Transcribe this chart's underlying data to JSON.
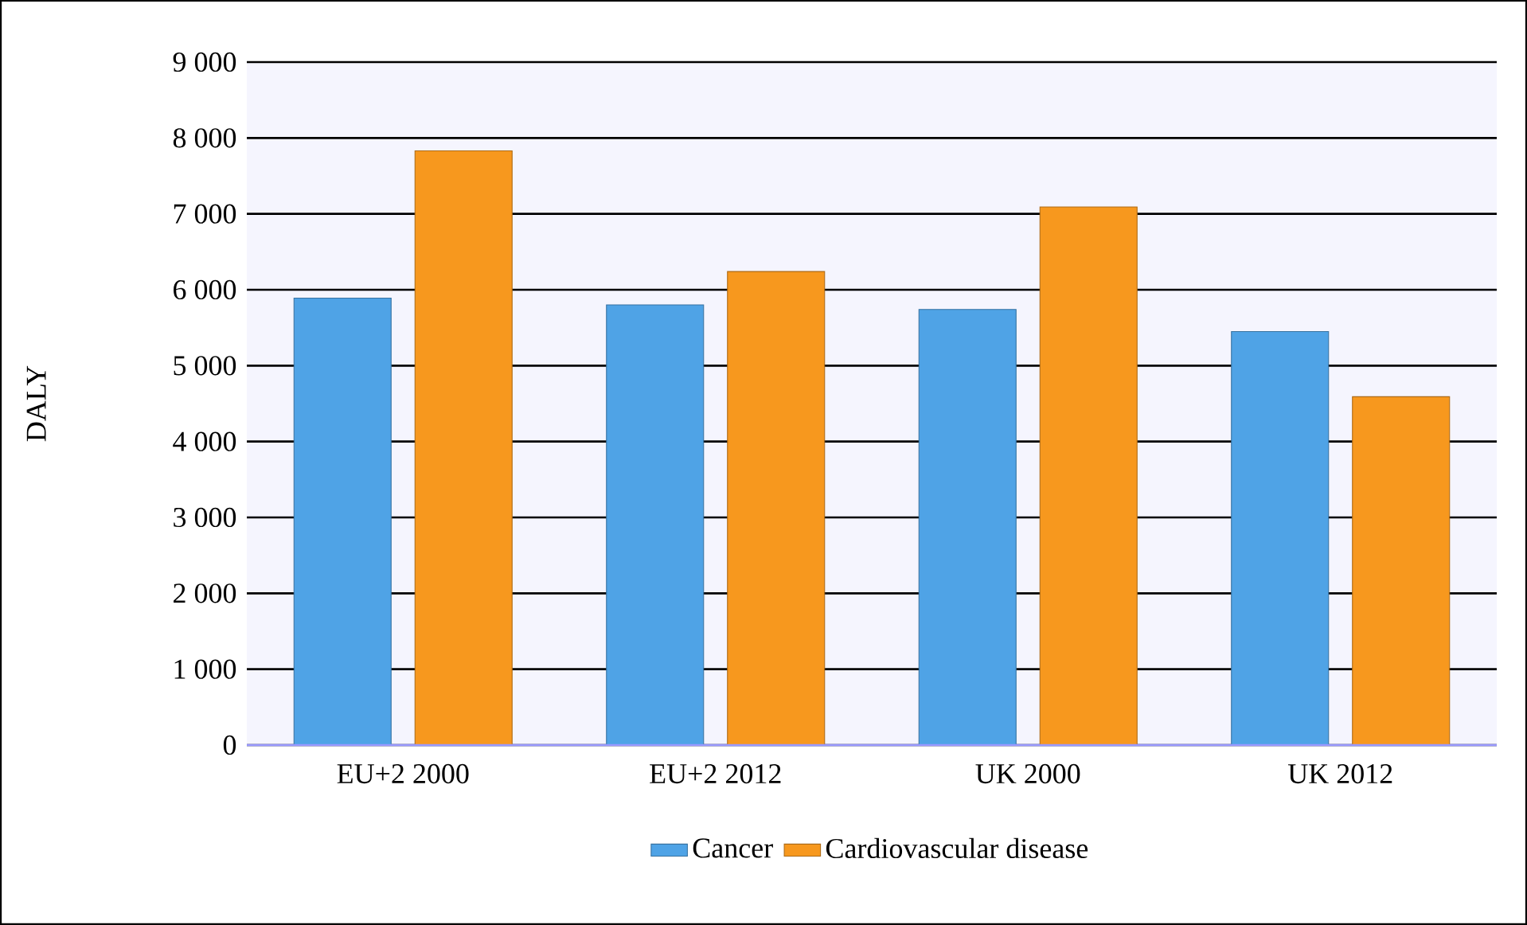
{
  "chart_data": {
    "type": "bar",
    "ylabel": "DALY",
    "categories": [
      "EU+2 2000",
      "EU+2 2012",
      "UK 2000",
      "UK 2012"
    ],
    "series": [
      {
        "name": "Cancer",
        "color": "#4fa3e6",
        "values": [
          5890,
          5800,
          5740,
          5450
        ]
      },
      {
        "name": "Cardiovascular disease",
        "color": "#f7981e",
        "values": [
          7830,
          6240,
          7090,
          4590
        ]
      }
    ],
    "ylim": [
      0,
      9000
    ],
    "yticks": [
      0,
      {
        "value": 1000,
        "label": "1 000"
      },
      {
        "value": 2000,
        "label": "2 000"
      },
      {
        "value": 3000,
        "label": "3 000"
      },
      {
        "value": 4000,
        "label": "4 000"
      },
      {
        "value": 5000,
        "label": "5 000"
      },
      {
        "value": 6000,
        "label": "6 000"
      },
      {
        "value": 7000,
        "label": "7 000"
      },
      {
        "value": 8000,
        "label": "8 000"
      },
      {
        "value": 9000,
        "label": "9 000"
      }
    ],
    "grid": "y",
    "legend": "bottom"
  }
}
